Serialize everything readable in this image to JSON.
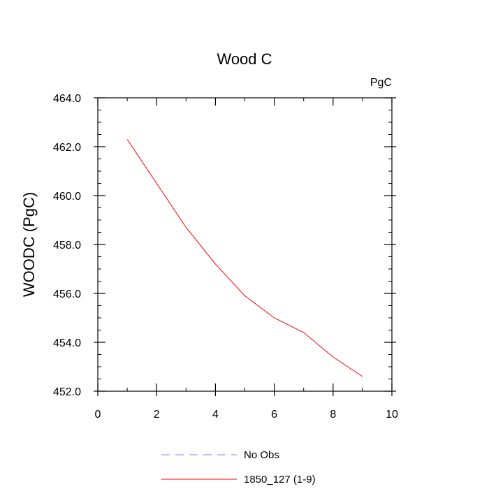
{
  "chart_data": {
    "type": "line",
    "title": "Wood C",
    "units_label": "PgC",
    "ylabel": "WOODC  (PgC)",
    "xlabel": "",
    "xlim": [
      0,
      10
    ],
    "ylim": [
      452.0,
      464.0
    ],
    "x_ticks": [
      0,
      2,
      4,
      6,
      8,
      10
    ],
    "x_tick_labels": [
      "0",
      "2",
      "4",
      "6",
      "8",
      "10"
    ],
    "y_ticks": [
      452.0,
      454.0,
      456.0,
      458.0,
      460.0,
      462.0,
      464.0
    ],
    "y_tick_labels": [
      "452.0",
      "454.0",
      "456.0",
      "458.0",
      "460.0",
      "462.0",
      "464.0"
    ],
    "grid": false,
    "legend_position": "bottom",
    "legend": [
      {
        "label": "No Obs",
        "color": "#8080ff",
        "dash": "dashed"
      },
      {
        "label": "1850_127 (1-9)",
        "color": "#ff0000",
        "dash": "solid"
      }
    ],
    "series": [
      {
        "name": "1850_127 (1-9)",
        "color": "#ff0000",
        "x": [
          1,
          2,
          3,
          4,
          5,
          6,
          7,
          8,
          9
        ],
        "y": [
          462.3,
          460.5,
          458.7,
          457.2,
          455.9,
          455.0,
          454.4,
          453.4,
          452.6
        ]
      }
    ]
  }
}
